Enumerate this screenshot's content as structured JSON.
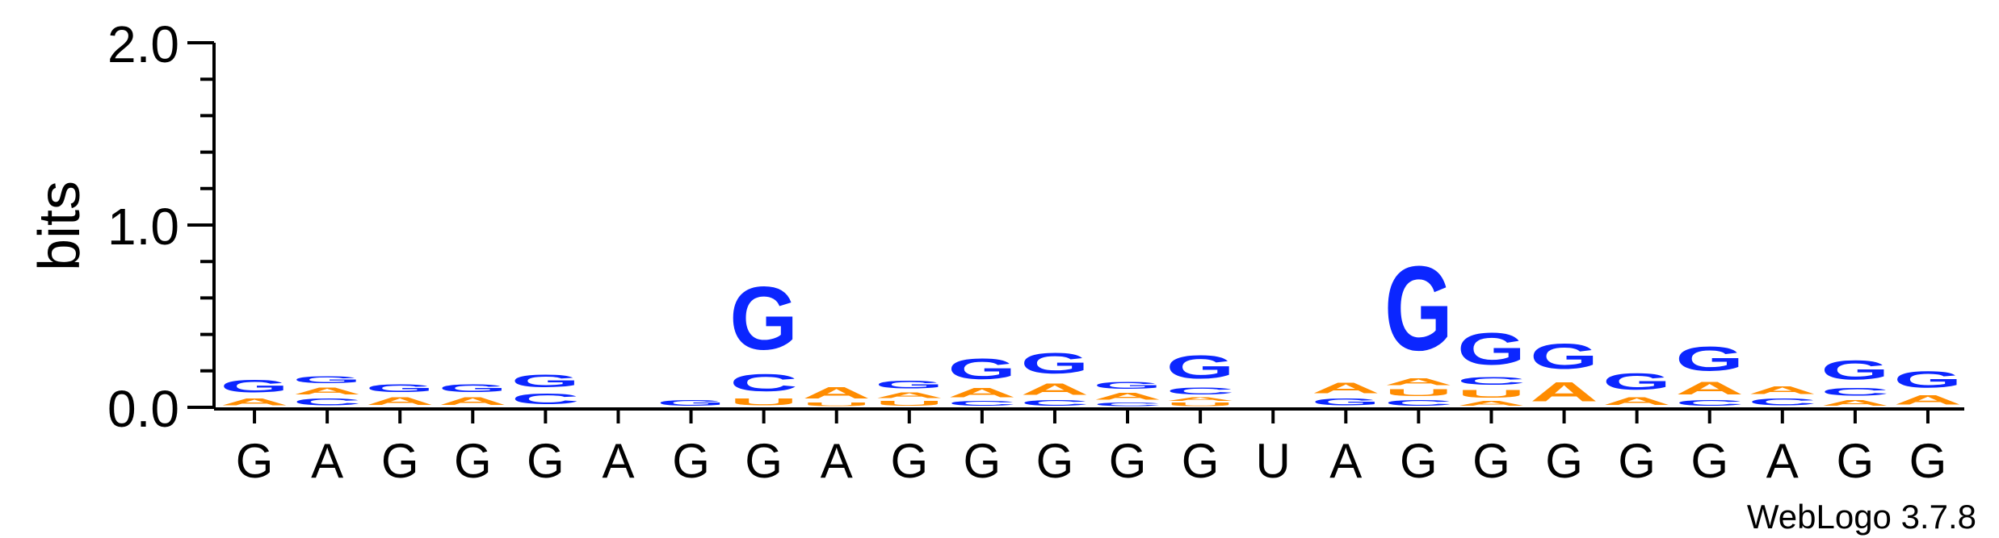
{
  "chart_data": {
    "type": "sequence-logo",
    "ylabel": "bits",
    "ylim": [
      0,
      2.0
    ],
    "yticks": [
      "0.0",
      "1.0",
      "2.0"
    ],
    "footer": "WebLogo 3.7.8",
    "colors": {
      "G": "#0b26ff",
      "C": "#0b26ff",
      "A": "#ff8c00",
      "U": "#ff8c00"
    },
    "positions": [
      {
        "label": "G",
        "stack": [
          {
            "letter": "A",
            "bits": 0.06
          },
          {
            "letter": "G",
            "bits": 0.11
          }
        ]
      },
      {
        "label": "A",
        "stack": [
          {
            "letter": "C",
            "bits": 0.06
          },
          {
            "letter": "A",
            "bits": 0.06
          },
          {
            "letter": "G",
            "bits": 0.06
          }
        ]
      },
      {
        "label": "G",
        "stack": [
          {
            "letter": "A",
            "bits": 0.07
          },
          {
            "letter": "G",
            "bits": 0.07
          }
        ]
      },
      {
        "label": "G",
        "stack": [
          {
            "letter": "A",
            "bits": 0.07
          },
          {
            "letter": "G",
            "bits": 0.07
          }
        ]
      },
      {
        "label": "G",
        "stack": [
          {
            "letter": "C",
            "bits": 0.09
          },
          {
            "letter": "G",
            "bits": 0.11
          }
        ]
      },
      {
        "label": "A",
        "stack": []
      },
      {
        "label": "G",
        "stack": [
          {
            "letter": "G",
            "bits": 0.05
          }
        ]
      },
      {
        "label": "G",
        "stack": [
          {
            "letter": "U",
            "bits": 0.06
          },
          {
            "letter": "C",
            "bits": 0.15
          },
          {
            "letter": "G",
            "bits": 0.55
          }
        ]
      },
      {
        "label": "A",
        "stack": [
          {
            "letter": "U",
            "bits": 0.03
          },
          {
            "letter": "A",
            "bits": 0.1
          }
        ]
      },
      {
        "label": "G",
        "stack": [
          {
            "letter": "U",
            "bits": 0.04
          },
          {
            "letter": "A",
            "bits": 0.05
          },
          {
            "letter": "G",
            "bits": 0.07
          }
        ]
      },
      {
        "label": "G",
        "stack": [
          {
            "letter": "C",
            "bits": 0.04
          },
          {
            "letter": "A",
            "bits": 0.08
          },
          {
            "letter": "G",
            "bits": 0.18
          }
        ]
      },
      {
        "label": "G",
        "stack": [
          {
            "letter": "C",
            "bits": 0.05
          },
          {
            "letter": "A",
            "bits": 0.1
          },
          {
            "letter": "G",
            "bits": 0.18
          }
        ]
      },
      {
        "label": "G",
        "stack": [
          {
            "letter": "C",
            "bits": 0.03
          },
          {
            "letter": "A",
            "bits": 0.06
          },
          {
            "letter": "G",
            "bits": 0.06
          }
        ]
      },
      {
        "label": "G",
        "stack": [
          {
            "letter": "U",
            "bits": 0.03
          },
          {
            "letter": "A",
            "bits": 0.03
          },
          {
            "letter": "C",
            "bits": 0.06
          },
          {
            "letter": "G",
            "bits": 0.2
          }
        ]
      },
      {
        "label": "U",
        "stack": []
      },
      {
        "label": "A",
        "stack": [
          {
            "letter": "G",
            "bits": 0.06
          },
          {
            "letter": "A",
            "bits": 0.09
          }
        ]
      },
      {
        "label": "G",
        "stack": [
          {
            "letter": "C",
            "bits": 0.05
          },
          {
            "letter": "U",
            "bits": 0.06
          },
          {
            "letter": "A",
            "bits": 0.06
          },
          {
            "letter": "G",
            "bits": 0.74
          }
        ]
      },
      {
        "label": "G",
        "stack": [
          {
            "letter": "A",
            "bits": 0.04
          },
          {
            "letter": "U",
            "bits": 0.07
          },
          {
            "letter": "C",
            "bits": 0.07
          },
          {
            "letter": "G",
            "bits": 0.28
          }
        ]
      },
      {
        "label": "G",
        "stack": [
          {
            "letter": "A",
            "bits": 0.17
          },
          {
            "letter": "G",
            "bits": 0.22
          }
        ]
      },
      {
        "label": "G",
        "stack": [
          {
            "letter": "A",
            "bits": 0.07
          },
          {
            "letter": "G",
            "bits": 0.14
          }
        ]
      },
      {
        "label": "G",
        "stack": [
          {
            "letter": "C",
            "bits": 0.05
          },
          {
            "letter": "A",
            "bits": 0.11
          },
          {
            "letter": "G",
            "bits": 0.21
          }
        ]
      },
      {
        "label": "A",
        "stack": [
          {
            "letter": "C",
            "bits": 0.06
          },
          {
            "letter": "A",
            "bits": 0.07
          }
        ]
      },
      {
        "label": "G",
        "stack": [
          {
            "letter": "A",
            "bits": 0.05
          },
          {
            "letter": "C",
            "bits": 0.07
          },
          {
            "letter": "G",
            "bits": 0.17
          }
        ]
      },
      {
        "label": "G",
        "stack": [
          {
            "letter": "A",
            "bits": 0.08
          },
          {
            "letter": "G",
            "bits": 0.14
          }
        ]
      }
    ]
  }
}
